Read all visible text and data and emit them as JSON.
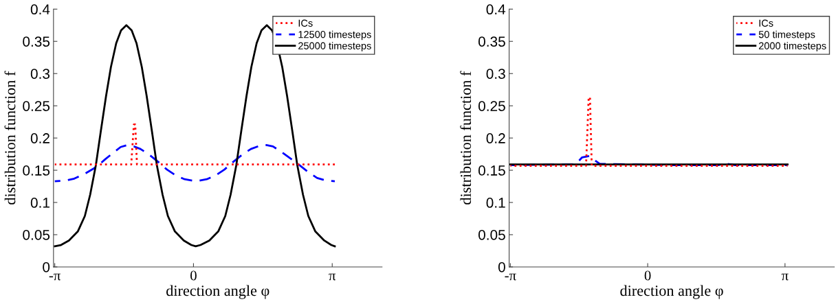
{
  "chart_data": [
    {
      "type": "line",
      "xlabel": "direction angle φ",
      "ylabel": "distribution function f",
      "xlim": [
        -3.17,
        4.27
      ],
      "ylim": [
        0,
        0.4
      ],
      "xticks": [
        {
          "value": -3.14159,
          "label": "-π"
        },
        {
          "value": 0,
          "label": "0"
        },
        {
          "value": 3.14159,
          "label": "π"
        }
      ],
      "yticks": [
        0,
        0.05,
        0.1,
        0.15,
        0.2,
        0.25,
        0.3,
        0.35,
        0.4
      ],
      "legend": "top right",
      "grid": false,
      "series": [
        {
          "name": "ICs",
          "color": "#ff0000",
          "line_style": "dotted",
          "x": [
            -3.14,
            -1.41,
            -1.35,
            -1.32,
            -1.28,
            3.2
          ],
          "values": [
            0.159,
            0.159,
            0.221,
            0.221,
            0.159,
            0.159
          ]
        },
        {
          "name": "12500 timesteps",
          "color": "#0000ff",
          "line_style": "dashed",
          "x": [
            -3.14,
            -2.9,
            -2.7,
            -2.45,
            -2.2,
            -2.0,
            -1.8,
            -1.65,
            -1.5,
            -1.35,
            -1.2,
            -1.0,
            -0.8,
            -0.6,
            -0.4,
            -0.2,
            0.05,
            0.3,
            0.5,
            0.7,
            0.9,
            1.1,
            1.3,
            1.5,
            1.65,
            1.8,
            2.0,
            2.2,
            2.4,
            2.6,
            2.8,
            3.0,
            3.2
          ],
          "values": [
            0.133,
            0.134,
            0.137,
            0.145,
            0.155,
            0.167,
            0.178,
            0.186,
            0.189,
            0.187,
            0.183,
            0.174,
            0.163,
            0.151,
            0.142,
            0.136,
            0.133,
            0.136,
            0.142,
            0.151,
            0.163,
            0.174,
            0.183,
            0.188,
            0.189,
            0.187,
            0.178,
            0.168,
            0.158,
            0.147,
            0.138,
            0.134,
            0.133
          ]
        },
        {
          "name": "25000 timesteps",
          "color": "#000000",
          "line_style": "solid",
          "x": [
            -3.14,
            -3.0,
            -2.82,
            -2.62,
            -2.46,
            -2.34,
            -2.21,
            -2.1,
            -1.98,
            -1.87,
            -1.75,
            -1.64,
            -1.52,
            -1.4,
            -1.29,
            -1.17,
            -1.06,
            -0.94,
            -0.83,
            -0.7,
            -0.58,
            -0.42,
            -0.22,
            -0.05,
            0.05,
            0.16,
            0.36,
            0.56,
            0.72,
            0.84,
            0.97,
            1.08,
            1.2,
            1.31,
            1.43,
            1.54,
            1.66,
            1.78,
            1.89,
            2.01,
            2.12,
            2.24,
            2.35,
            2.48,
            2.6,
            2.76,
            2.96,
            3.12,
            3.2
          ],
          "values": [
            0.032,
            0.034,
            0.041,
            0.055,
            0.079,
            0.112,
            0.158,
            0.21,
            0.265,
            0.31,
            0.347,
            0.367,
            0.375,
            0.367,
            0.347,
            0.31,
            0.265,
            0.21,
            0.158,
            0.112,
            0.079,
            0.055,
            0.041,
            0.034,
            0.032,
            0.034,
            0.041,
            0.055,
            0.079,
            0.112,
            0.158,
            0.21,
            0.265,
            0.31,
            0.347,
            0.367,
            0.375,
            0.367,
            0.347,
            0.31,
            0.265,
            0.21,
            0.158,
            0.112,
            0.079,
            0.055,
            0.041,
            0.034,
            0.032
          ]
        }
      ]
    },
    {
      "type": "line",
      "xlabel": "direction angle φ",
      "ylabel": "distribution function f",
      "xlim": [
        -3.17,
        4.27
      ],
      "ylim": [
        0,
        0.4
      ],
      "xticks": [
        {
          "value": -3.14159,
          "label": "-π"
        },
        {
          "value": 0,
          "label": "0"
        },
        {
          "value": 3.14159,
          "label": "π"
        }
      ],
      "yticks": [
        0,
        0.05,
        0.1,
        0.15,
        0.2,
        0.25,
        0.3,
        0.35,
        0.4
      ],
      "legend": "top right",
      "grid": false,
      "series": [
        {
          "name": "ICs",
          "color": "#ff0000",
          "line_style": "dotted",
          "x": [
            -3.14,
            -1.41,
            -1.35,
            -1.32,
            -1.28,
            3.2
          ],
          "values": [
            0.157,
            0.157,
            0.263,
            0.263,
            0.157,
            0.157
          ]
        },
        {
          "name": "50 timesteps",
          "color": "#0000ff",
          "line_style": "dashed",
          "x": [
            -3.14,
            -1.65,
            -1.5,
            -1.34,
            -1.2,
            -1.1,
            0.5,
            1.6,
            1.8,
            2.0,
            3.2
          ],
          "values": [
            0.158,
            0.159,
            0.17,
            0.172,
            0.165,
            0.16,
            0.158,
            0.158,
            0.16,
            0.158,
            0.158
          ]
        },
        {
          "name": "2000 timesteps",
          "color": "#000000",
          "line_style": "solid",
          "x": [
            -3.14,
            3.2
          ],
          "values": [
            0.159,
            0.159
          ]
        }
      ]
    }
  ]
}
